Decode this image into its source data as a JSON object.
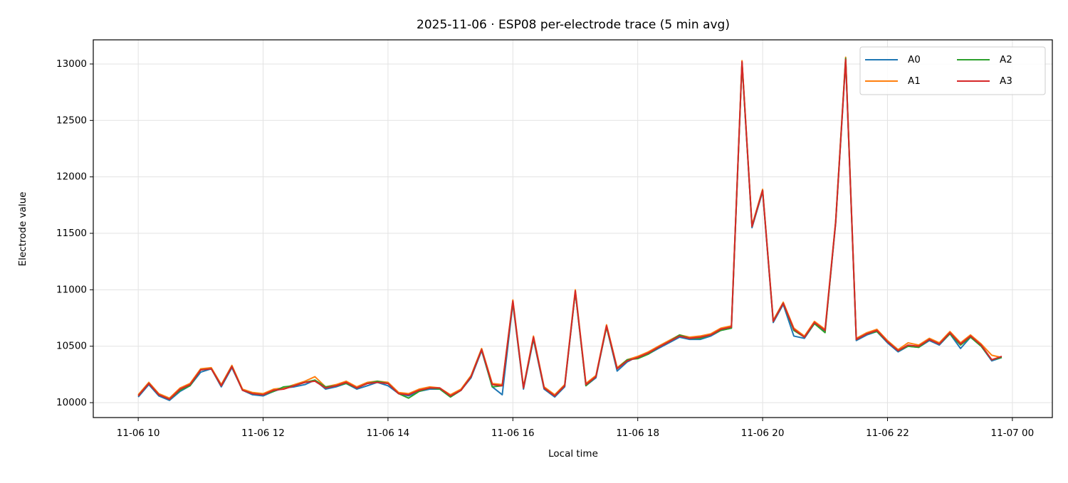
{
  "chart_data": {
    "type": "line",
    "title": "2025-11-06 · ESP08 per-electrode trace (5 min avg)",
    "xlabel": "Local time",
    "ylabel": "Electrode value",
    "x": [
      10,
      10.17,
      10.33,
      10.5,
      10.67,
      10.83,
      11,
      11.17,
      11.33,
      11.5,
      11.67,
      11.83,
      12,
      12.17,
      12.33,
      12.5,
      12.67,
      12.83,
      13,
      13.17,
      13.33,
      13.5,
      13.67,
      13.83,
      14,
      14.17,
      14.33,
      14.5,
      14.67,
      14.83,
      15,
      15.17,
      15.33,
      15.5,
      15.67,
      15.83,
      16,
      16.17,
      16.33,
      16.5,
      16.67,
      16.83,
      17,
      17.17,
      17.33,
      17.5,
      17.67,
      17.83,
      18,
      18.17,
      18.33,
      18.5,
      18.67,
      18.83,
      19,
      19.17,
      19.33,
      19.5,
      19.67,
      19.83,
      20,
      20.17,
      20.33,
      20.5,
      20.67,
      20.83,
      21,
      21.17,
      21.33,
      21.5,
      21.67,
      21.83,
      22,
      22.17,
      22.33,
      22.5,
      22.67,
      22.83,
      23,
      23.17,
      23.33,
      23.5,
      23.67,
      23.83
    ],
    "series": [
      {
        "name": "A0",
        "color": "#1f77b4",
        "values": [
          10050,
          10160,
          10060,
          10020,
          10100,
          10150,
          10270,
          10300,
          10140,
          10310,
          10110,
          10070,
          10060,
          10100,
          10130,
          10140,
          10160,
          10200,
          10120,
          10140,
          10170,
          10120,
          10150,
          10180,
          10150,
          10080,
          10060,
          10100,
          10120,
          10120,
          10050,
          10110,
          10220,
          10460,
          10140,
          10070,
          10880,
          10120,
          10560,
          10120,
          10050,
          10140,
          10980,
          10150,
          10220,
          10670,
          10280,
          10360,
          10410,
          10430,
          10480,
          10530,
          10580,
          10560,
          10560,
          10590,
          10640,
          10660,
          13010,
          11550,
          11870,
          10710,
          10870,
          10590,
          10570,
          10700,
          10630,
          11590,
          13030,
          10550,
          10600,
          10630,
          10530,
          10450,
          10500,
          10490,
          10550,
          10510,
          10610,
          10480,
          10580,
          10500,
          10370,
          10400
        ]
      },
      {
        "name": "A1",
        "color": "#ff7f0e",
        "values": [
          10070,
          10180,
          10080,
          10040,
          10130,
          10170,
          10300,
          10310,
          10160,
          10330,
          10120,
          10090,
          10080,
          10120,
          10130,
          10160,
          10190,
          10230,
          10140,
          10160,
          10190,
          10140,
          10180,
          10190,
          10180,
          10090,
          10080,
          10120,
          10140,
          10130,
          10070,
          10120,
          10240,
          10480,
          10170,
          10160,
          10910,
          10140,
          10590,
          10140,
          10070,
          10160,
          11000,
          10170,
          10240,
          10690,
          10310,
          10380,
          10410,
          10450,
          10500,
          10550,
          10600,
          10580,
          10590,
          10610,
          10660,
          10680,
          13030,
          11570,
          11890,
          10730,
          10890,
          10660,
          10590,
          10720,
          10650,
          11610,
          13060,
          10570,
          10620,
          10650,
          10550,
          10470,
          10530,
          10510,
          10570,
          10530,
          10630,
          10530,
          10600,
          10520,
          10420,
          10400
        ]
      },
      {
        "name": "A2",
        "color": "#2ca02c",
        "values": [
          10060,
          10170,
          10070,
          10030,
          10110,
          10150,
          10290,
          10300,
          10150,
          10320,
          10110,
          10080,
          10070,
          10100,
          10140,
          10150,
          10180,
          10200,
          10140,
          10150,
          10170,
          10130,
          10170,
          10190,
          10170,
          10080,
          10040,
          10100,
          10130,
          10120,
          10050,
          10110,
          10230,
          10470,
          10140,
          10150,
          10890,
          10130,
          10570,
          10130,
          10060,
          10150,
          10980,
          10150,
          10230,
          10670,
          10300,
          10380,
          10390,
          10430,
          10490,
          10540,
          10600,
          10570,
          10570,
          10600,
          10640,
          10660,
          13010,
          11560,
          11880,
          10720,
          10880,
          10640,
          10580,
          10700,
          10620,
          11600,
          13050,
          10560,
          10610,
          10630,
          10540,
          10460,
          10500,
          10490,
          10560,
          10520,
          10610,
          10510,
          10580,
          10500,
          10380,
          10400
        ]
      },
      {
        "name": "A3",
        "color": "#d62728",
        "values": [
          10060,
          10170,
          10070,
          10030,
          10120,
          10160,
          10290,
          10300,
          10150,
          10320,
          10110,
          10080,
          10070,
          10110,
          10120,
          10150,
          10180,
          10190,
          10130,
          10150,
          10180,
          10130,
          10170,
          10180,
          10170,
          10080,
          10070,
          10110,
          10130,
          10130,
          10060,
          10110,
          10230,
          10470,
          10160,
          10150,
          10900,
          10130,
          10580,
          10130,
          10060,
          10150,
          10990,
          10160,
          10230,
          10680,
          10300,
          10370,
          10400,
          10440,
          10490,
          10540,
          10590,
          10570,
          10580,
          10600,
          10650,
          10670,
          13020,
          11560,
          11880,
          10720,
          10880,
          10650,
          10580,
          10710,
          10640,
          11600,
          13040,
          10560,
          10610,
          10640,
          10540,
          10460,
          10510,
          10500,
          10560,
          10520,
          10620,
          10520,
          10590,
          10510,
          10380,
          10410
        ]
      }
    ],
    "xlim": [
      9.28,
      24.64
    ],
    "xticks": [
      {
        "value": 10,
        "label": "11-06 10"
      },
      {
        "value": 12,
        "label": "11-06 12"
      },
      {
        "value": 14,
        "label": "11-06 14"
      },
      {
        "value": 16,
        "label": "11-06 16"
      },
      {
        "value": 18,
        "label": "11-06 18"
      },
      {
        "value": 20,
        "label": "11-06 20"
      },
      {
        "value": 22,
        "label": "11-06 22"
      },
      {
        "value": 24,
        "label": "11-07 00"
      }
    ],
    "ylim": [
      9868,
      13214
    ],
    "yticks": [
      10000,
      10500,
      11000,
      11500,
      12000,
      12500,
      13000
    ],
    "grid": true,
    "legend": "upper right"
  }
}
